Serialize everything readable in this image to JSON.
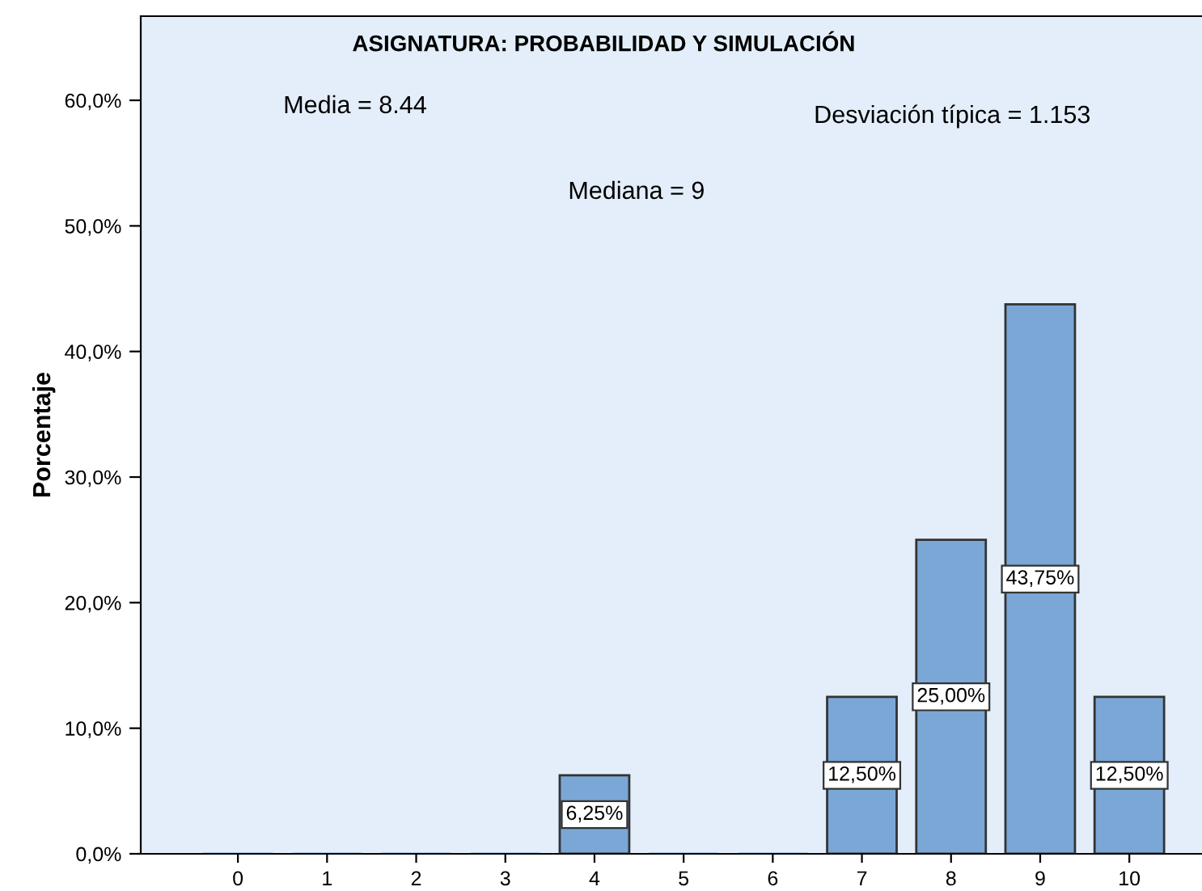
{
  "chart_data": {
    "type": "bar",
    "title": "ASIGNATURA: PROBABILIDAD Y SIMULACIÓN",
    "ylabel": "Porcentaje",
    "categories": [
      "0",
      "1",
      "2",
      "3",
      "4",
      "5",
      "6",
      "7",
      "8",
      "9",
      "10"
    ],
    "values": [
      0,
      0,
      0,
      0,
      6.25,
      0,
      0,
      12.5,
      25,
      43.75,
      12.5
    ],
    "value_labels": [
      null,
      null,
      null,
      null,
      "6,25%",
      null,
      null,
      "12,50%",
      "25,00%",
      "43,75%",
      "12,50%"
    ],
    "color": "#7aa7d6",
    "ylim": [
      0,
      66.7
    ],
    "yticks": [
      {
        "value": 0,
        "label": "0,0%"
      },
      {
        "value": 10,
        "label": "10,0%"
      },
      {
        "value": 20,
        "label": "20,0%"
      },
      {
        "value": 30,
        "label": "30,0%"
      },
      {
        "value": 40,
        "label": "40,0%"
      },
      {
        "value": 50,
        "label": "50,0%"
      },
      {
        "value": 60,
        "label": "60,0%"
      }
    ],
    "annotations": [
      "Media = 8.44",
      "Desviación típica = 1.153",
      "Mediana = 9"
    ],
    "grid": false,
    "legend": false
  }
}
